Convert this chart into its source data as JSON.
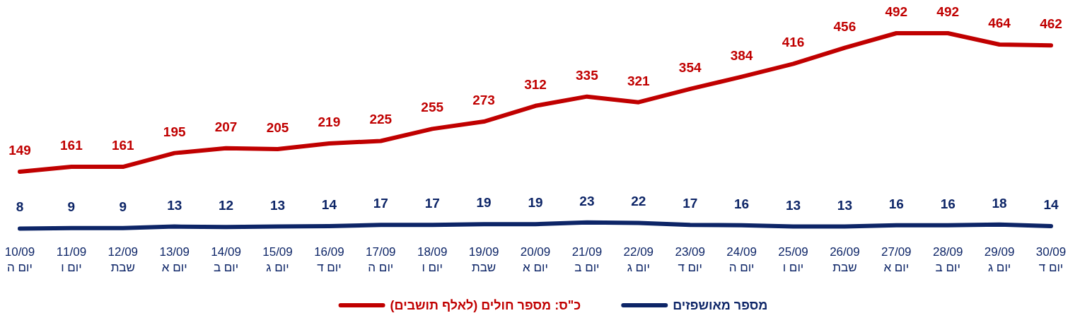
{
  "chart_data": {
    "type": "line",
    "categories": [
      "10/09\nיום ה",
      "11/09\nיום ו",
      "12/09\nשבת",
      "13/09\nיום א",
      "14/09\nיום ב",
      "15/09\nיום ג",
      "16/09\nיום ד",
      "17/09\nיום ה",
      "18/09\nיום ו",
      "19/09\nשבת",
      "20/09\nיום א",
      "21/09\nיום ב",
      "22/09\nיום ג",
      "23/09\nיום ד",
      "24/09\nיום ה",
      "25/09\nיום ו",
      "26/09\nשבת",
      "27/09\nיום א",
      "28/09\nיום ב",
      "29/09\nיום ג",
      "30/09\nיום ד"
    ],
    "series": [
      {
        "name": "כ\"ס: מספר חולים (לאלף תושבים)",
        "color": "#c00000",
        "values": [
          149,
          161,
          161,
          195,
          207,
          205,
          219,
          225,
          255,
          273,
          312,
          335,
          321,
          354,
          384,
          416,
          456,
          492,
          492,
          464,
          462
        ]
      },
      {
        "name": "מספר מאושפזים",
        "color": "#0d2567",
        "values": [
          8,
          9,
          9,
          13,
          12,
          13,
          14,
          17,
          17,
          19,
          19,
          23,
          22,
          17,
          16,
          13,
          13,
          16,
          16,
          18,
          14
        ]
      }
    ],
    "data_labels": true,
    "legend": "bottom"
  }
}
